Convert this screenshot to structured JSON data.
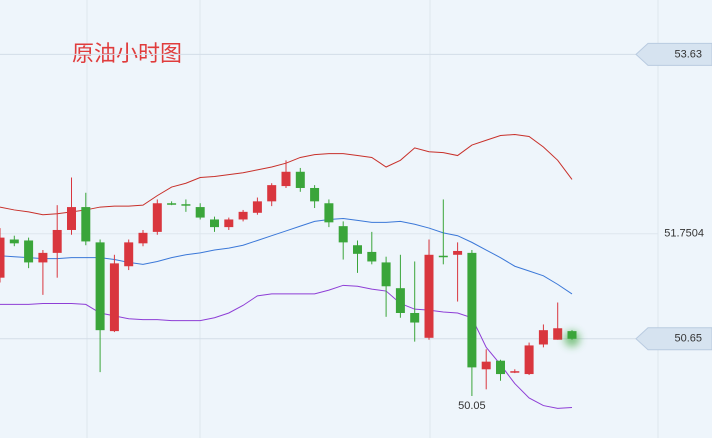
{
  "chart_data": {
    "type": "candlestick",
    "title": "原油小时图",
    "open": [
      51.29,
      51.69,
      51.68,
      51.45,
      51.55,
      51.79,
      52.03,
      51.66,
      50.73,
      51.41,
      51.65,
      51.77,
      52.07,
      52.06,
      52.03,
      51.9,
      51.82,
      51.9,
      51.97,
      52.09,
      52.25,
      52.4,
      52.23,
      52.07,
      51.83,
      51.63,
      51.56,
      51.45,
      51.18,
      50.92,
      50.66,
      51.52,
      51.53,
      51.55,
      50.33,
      50.42,
      50.3,
      50.28,
      50.59,
      50.64,
      50.73
    ],
    "high": [
      51.81,
      51.73,
      51.71,
      51.58,
      52.05,
      52.34,
      52.18,
      51.69,
      51.53,
      51.69,
      51.79,
      52.11,
      52.09,
      52.11,
      52.07,
      51.93,
      51.92,
      52.0,
      52.13,
      52.28,
      52.52,
      52.44,
      52.26,
      52.11,
      51.88,
      51.68,
      51.77,
      51.51,
      51.53,
      51.46,
      51.69,
      52.11,
      51.66,
      51.58,
      50.54,
      50.43,
      50.33,
      50.61,
      50.8,
      51.03,
      50.74
    ],
    "low": [
      51.24,
      51.62,
      51.39,
      51.11,
      51.29,
      51.74,
      51.63,
      50.3,
      50.72,
      51.37,
      51.62,
      51.74,
      52.05,
      51.98,
      51.9,
      51.77,
      51.79,
      51.88,
      51.95,
      52.04,
      52.23,
      52.19,
      52.02,
      51.82,
      51.48,
      51.34,
      51.43,
      50.88,
      50.87,
      50.62,
      50.64,
      51.43,
      51.04,
      50.05,
      50.12,
      50.21,
      50.29,
      50.27,
      50.56,
      50.64,
      50.64
    ],
    "close": [
      51.71,
      51.65,
      51.45,
      51.55,
      51.79,
      52.03,
      51.67,
      50.74,
      51.44,
      51.66,
      51.76,
      52.07,
      52.06,
      52.05,
      51.92,
      51.82,
      51.9,
      51.98,
      52.09,
      52.26,
      52.4,
      52.23,
      52.09,
      51.87,
      51.66,
      51.54,
      51.46,
      51.2,
      50.92,
      50.82,
      51.53,
      51.51,
      51.57,
      50.35,
      50.41,
      50.28,
      50.31,
      50.58,
      50.74,
      50.76,
      50.65
    ],
    "up_color": "#d9363e",
    "down_color": "#3aa53a",
    "bands": [
      {
        "color": "#c8302a",
        "values": [
          52.03,
          52.0,
          51.98,
          51.95,
          51.96,
          51.98,
          52.0,
          52.03,
          52.04,
          52.04,
          52.05,
          52.15,
          52.24,
          52.28,
          52.34,
          52.35,
          52.37,
          52.39,
          52.42,
          52.45,
          52.49,
          52.55,
          52.58,
          52.59,
          52.59,
          52.57,
          52.55,
          52.45,
          52.52,
          52.65,
          52.61,
          52.6,
          52.57,
          52.68,
          52.73,
          52.78,
          52.79,
          52.77,
          52.66,
          52.52,
          52.32
        ]
      },
      {
        "color": "#3b78d8",
        "values": [
          51.52,
          51.51,
          51.5,
          51.49,
          51.49,
          51.5,
          51.5,
          51.5,
          51.48,
          51.45,
          51.43,
          51.46,
          51.5,
          51.53,
          51.55,
          51.58,
          51.6,
          51.63,
          51.68,
          51.73,
          51.78,
          51.83,
          51.88,
          51.9,
          51.91,
          51.89,
          51.87,
          51.87,
          51.88,
          51.85,
          51.81,
          51.76,
          51.73,
          51.66,
          51.58,
          51.5,
          51.41,
          51.36,
          51.31,
          51.22,
          51.12
        ]
      },
      {
        "color": "#8e3ed6",
        "values": [
          51.01,
          51.01,
          51.01,
          51.02,
          51.02,
          51.02,
          51.01,
          50.92,
          50.89,
          50.86,
          50.85,
          50.85,
          50.84,
          50.84,
          50.84,
          50.87,
          50.92,
          51.0,
          51.1,
          51.12,
          51.12,
          51.12,
          51.12,
          51.16,
          51.21,
          51.2,
          51.17,
          51.15,
          51.02,
          50.96,
          50.95,
          50.93,
          50.92,
          50.87,
          50.56,
          50.38,
          50.18,
          50.03,
          49.95,
          49.92,
          49.93
        ]
      }
    ],
    "ylim": [
      49.61,
      54.2
    ],
    "yticks": [
      51.7504
    ],
    "price_tags": [
      53.63,
      50.65
    ],
    "low_label": 50.05,
    "low_label_index": 33
  }
}
